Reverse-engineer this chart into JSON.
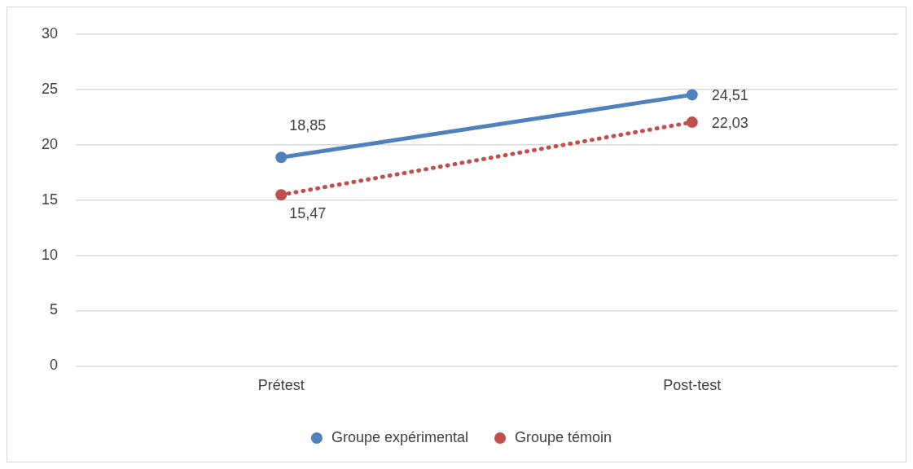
{
  "chart_data": {
    "type": "line",
    "categories": [
      "Prétest",
      "Post-test"
    ],
    "series": [
      {
        "name": "Groupe expérimental",
        "color": "#4f81bd",
        "values": [
          18.85,
          24.51
        ],
        "value_labels": [
          "18,85",
          "24,51"
        ],
        "line_style": "solid"
      },
      {
        "name": "Groupe témoin",
        "color": "#c0504d",
        "values": [
          15.47,
          22.03
        ],
        "value_labels": [
          "15,47",
          "22,03"
        ],
        "line_style": "dotted"
      }
    ],
    "ylim": [
      0,
      30
    ],
    "yticks": [
      0,
      5,
      10,
      15,
      20,
      25,
      30
    ],
    "grid": "y",
    "legend": "bottom",
    "marker": "circle"
  }
}
